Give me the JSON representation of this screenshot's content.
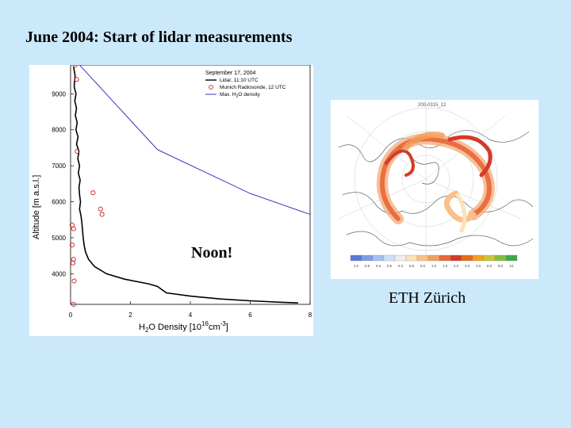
{
  "slide": {
    "title": "June 2004: Start of lidar measurements",
    "noon_label": "Noon!",
    "credit": "ETH Zürich"
  },
  "chart_data": {
    "type": "line",
    "title": "September 17, 2004",
    "xlabel_main": "H",
    "xlabel_sub": "2",
    "xlabel_rest": "O Density [10",
    "xlabel_sup": "16",
    "xlabel_tail": "cm",
    "xlabel_sup2": "-3",
    "xlabel_end": "]",
    "ylabel": "Altitude [m a.s.l.]",
    "xlim": [
      0,
      8
    ],
    "ylim": [
      3150,
      9800
    ],
    "x_ticks": [
      0,
      2,
      4,
      6,
      8
    ],
    "y_ticks": [
      4000,
      5000,
      6000,
      7000,
      8000,
      9000
    ],
    "legend_position": "top-right",
    "series": [
      {
        "name": "Lidar, 11:10 UTC",
        "kind": "line",
        "color": "#000000",
        "points": [
          [
            0.1,
            9750
          ],
          [
            0.15,
            9500
          ],
          [
            0.12,
            9200
          ],
          [
            0.18,
            9000
          ],
          [
            0.14,
            8800
          ],
          [
            0.2,
            8600
          ],
          [
            0.16,
            8400
          ],
          [
            0.22,
            8200
          ],
          [
            0.18,
            8000
          ],
          [
            0.25,
            7800
          ],
          [
            0.2,
            7600
          ],
          [
            0.28,
            7400
          ],
          [
            0.24,
            7200
          ],
          [
            0.3,
            7000
          ],
          [
            0.26,
            6800
          ],
          [
            0.32,
            6600
          ],
          [
            0.28,
            6400
          ],
          [
            0.3,
            6200
          ],
          [
            0.33,
            6000
          ],
          [
            0.3,
            5800
          ],
          [
            0.35,
            5600
          ],
          [
            0.38,
            5400
          ],
          [
            0.4,
            5200
          ],
          [
            0.42,
            5000
          ],
          [
            0.45,
            4800
          ],
          [
            0.5,
            4600
          ],
          [
            0.6,
            4400
          ],
          [
            0.8,
            4200
          ],
          [
            1.2,
            4000
          ],
          [
            1.8,
            3850
          ],
          [
            2.6,
            3720
          ],
          [
            2.9,
            3650
          ],
          [
            3.2,
            3470
          ],
          [
            4.0,
            3380
          ],
          [
            5.0,
            3300
          ],
          [
            6.0,
            3250
          ],
          [
            7.0,
            3210
          ],
          [
            7.6,
            3190
          ]
        ]
      },
      {
        "name": "Munich Radiosonde, 12 UTC",
        "kind": "markers",
        "color": "#cc2222",
        "points": [
          [
            0.15,
            9800
          ],
          [
            0.2,
            9400
          ],
          [
            0.22,
            7400
          ],
          [
            0.75,
            6250
          ],
          [
            1.0,
            5800
          ],
          [
            1.05,
            5650
          ],
          [
            0.05,
            5350
          ],
          [
            0.1,
            5250
          ],
          [
            0.05,
            4800
          ],
          [
            0.1,
            4400
          ],
          [
            0.08,
            4300
          ],
          [
            0.12,
            3800
          ],
          [
            0.1,
            3150
          ]
        ]
      },
      {
        "name": "Max. H",
        "name_sub": "2",
        "name_rest": "O density",
        "kind": "line",
        "color": "#2222bb",
        "points": [
          [
            0.3,
            9800
          ],
          [
            2.9,
            7450
          ],
          [
            6.0,
            6230
          ],
          [
            8.0,
            5650
          ]
        ]
      }
    ]
  },
  "map": {
    "title": "200-0315_12",
    "colorbar_colors": [
      "#5a78d8",
      "#7f9ee6",
      "#a6c0f0",
      "#cfe0f8",
      "#eeeeee",
      "#fde1b8",
      "#f9c08a",
      "#f59f5a",
      "#e8663a",
      "#d43a28",
      "#e86a1a",
      "#f4a020",
      "#c8c830",
      "#80c040",
      "#3ea84a"
    ],
    "colorbar_labels": [
      "1.0",
      "0.8",
      "0.6",
      "0.5",
      "0.3",
      "0.5",
      "0.0",
      "1.0",
      "1.5",
      "2.0",
      "3.0",
      "4.0",
      "6.0",
      "8.0",
      "10"
    ]
  }
}
